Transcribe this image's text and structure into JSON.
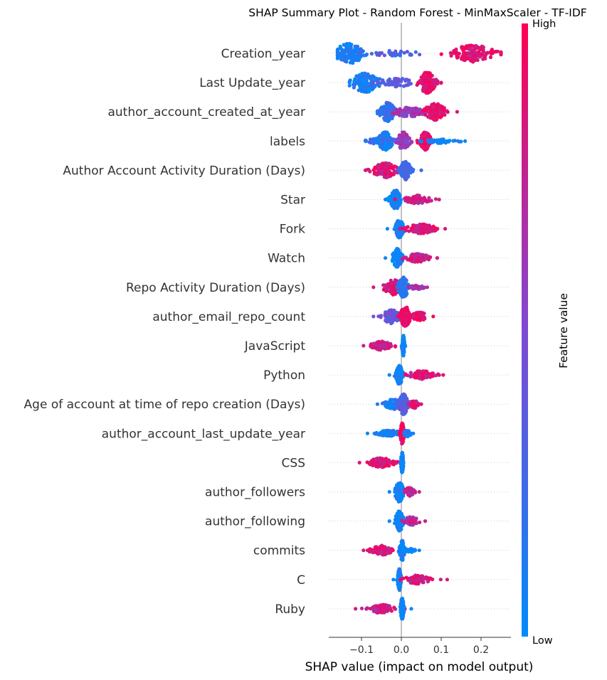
{
  "chart_data": {
    "type": "scatter",
    "subtype": "shap-beeswarm",
    "title": "SHAP Summary Plot - Random Forest - MinMaxScaler - TF-IDF",
    "xlabel": "SHAP value (impact on model output)",
    "xlim": [
      -0.18,
      0.27
    ],
    "xticks": [
      -0.1,
      0.0,
      0.1,
      0.2
    ],
    "xtick_labels": [
      "−0.1",
      "0.0",
      "0.1",
      "0.2"
    ],
    "colorbar": {
      "label": "Feature value",
      "high_label": "High",
      "low_label": "Low",
      "low_color": "#008bfb",
      "mid_color": "#7f49d3",
      "high_color": "#ff0052"
    },
    "features": [
      {
        "name": "Creation_year",
        "min": -0.16,
        "max": 0.25,
        "clusters": [
          {
            "c": -0.13,
            "w": 0.035,
            "n": 140,
            "h": 0.95,
            "v": 0.1
          },
          {
            "c": -0.02,
            "w": 0.07,
            "n": 40,
            "h": 0.25,
            "v": 0.3
          },
          {
            "c": 0.18,
            "w": 0.05,
            "n": 130,
            "h": 0.8,
            "v": 0.88
          }
        ]
      },
      {
        "name": "Last Update_year",
        "min": -0.13,
        "max": 0.1,
        "clusters": [
          {
            "c": -0.09,
            "w": 0.035,
            "n": 130,
            "h": 0.9,
            "v": 0.1
          },
          {
            "c": -0.01,
            "w": 0.04,
            "n": 60,
            "h": 0.4,
            "v": 0.35
          },
          {
            "c": 0.065,
            "w": 0.02,
            "n": 140,
            "h": 1.0,
            "v": 0.9
          }
        ]
      },
      {
        "name": "author_account_created_at_year",
        "min": -0.06,
        "max": 0.14,
        "clusters": [
          {
            "c": -0.035,
            "w": 0.018,
            "n": 130,
            "h": 0.9,
            "v": 0.2
          },
          {
            "c": 0.02,
            "w": 0.035,
            "n": 90,
            "h": 0.5,
            "v": 0.6
          },
          {
            "c": 0.085,
            "w": 0.025,
            "n": 110,
            "h": 0.8,
            "v": 0.9
          }
        ]
      },
      {
        "name": "labels",
        "min": -0.09,
        "max": 0.16,
        "clusters": [
          {
            "c": -0.04,
            "w": 0.018,
            "n": 120,
            "h": 0.85,
            "v": 0.1
          },
          {
            "c": -0.05,
            "w": 0.04,
            "n": 40,
            "h": 0.3,
            "v": 0.2
          },
          {
            "c": 0.005,
            "w": 0.014,
            "n": 100,
            "h": 0.85,
            "v": 0.6
          },
          {
            "c": 0.06,
            "w": 0.014,
            "n": 110,
            "h": 0.85,
            "v": 0.92
          },
          {
            "c": 0.1,
            "w": 0.04,
            "n": 40,
            "h": 0.2,
            "v": 0.05
          }
        ]
      },
      {
        "name": "Author Account Activity Duration (Days)",
        "min": -0.09,
        "max": 0.05,
        "clusters": [
          {
            "c": -0.04,
            "w": 0.03,
            "n": 130,
            "h": 0.7,
            "v": 0.85
          },
          {
            "c": 0.01,
            "w": 0.013,
            "n": 110,
            "h": 0.9,
            "v": 0.25
          }
        ]
      },
      {
        "name": "Star",
        "min": -0.04,
        "max": 0.095,
        "clusters": [
          {
            "c": -0.015,
            "w": 0.012,
            "n": 130,
            "h": 0.95,
            "v": 0.05
          },
          {
            "c": 0.04,
            "w": 0.03,
            "n": 90,
            "h": 0.4,
            "v": 0.8
          }
        ]
      },
      {
        "name": "Fork",
        "min": -0.035,
        "max": 0.11,
        "clusters": [
          {
            "c": -0.005,
            "w": 0.01,
            "n": 120,
            "h": 0.85,
            "v": 0.05
          },
          {
            "c": 0.05,
            "w": 0.035,
            "n": 110,
            "h": 0.45,
            "v": 0.85
          }
        ]
      },
      {
        "name": "Watch",
        "min": -0.04,
        "max": 0.09,
        "clusters": [
          {
            "c": -0.01,
            "w": 0.011,
            "n": 120,
            "h": 0.9,
            "v": 0.05
          },
          {
            "c": 0.04,
            "w": 0.03,
            "n": 90,
            "h": 0.4,
            "v": 0.8
          }
        ]
      },
      {
        "name": "Repo Activity Duration (Days)",
        "min": -0.07,
        "max": 0.065,
        "clusters": [
          {
            "c": -0.02,
            "w": 0.022,
            "n": 110,
            "h": 0.7,
            "v": 0.85
          },
          {
            "c": 0.005,
            "w": 0.013,
            "n": 110,
            "h": 0.95,
            "v": 0.15
          },
          {
            "c": 0.04,
            "w": 0.02,
            "n": 30,
            "h": 0.2,
            "v": 0.7
          }
        ]
      },
      {
        "name": "author_email_repo_count",
        "min": -0.07,
        "max": 0.08,
        "clusters": [
          {
            "c": -0.025,
            "w": 0.02,
            "n": 110,
            "h": 0.65,
            "v": 0.4
          },
          {
            "c": 0.01,
            "w": 0.012,
            "n": 130,
            "h": 0.95,
            "v": 0.95
          },
          {
            "c": 0.045,
            "w": 0.02,
            "n": 60,
            "h": 0.4,
            "v": 0.9
          }
        ]
      },
      {
        "name": "JavaScript",
        "min": -0.095,
        "max": 0.01,
        "clusters": [
          {
            "c": -0.05,
            "w": 0.028,
            "n": 110,
            "h": 0.4,
            "v": 0.8
          },
          {
            "c": 0.005,
            "w": 0.003,
            "n": 100,
            "h": 0.95,
            "v": 0.02
          }
        ]
      },
      {
        "name": "Python",
        "min": -0.03,
        "max": 0.105,
        "clusters": [
          {
            "c": -0.005,
            "w": 0.008,
            "n": 110,
            "h": 0.9,
            "v": 0.05
          },
          {
            "c": 0.05,
            "w": 0.03,
            "n": 100,
            "h": 0.4,
            "v": 0.85
          }
        ]
      },
      {
        "name": "Age of account at time of repo creation (Days)",
        "min": -0.06,
        "max": 0.05,
        "clusters": [
          {
            "c": -0.02,
            "w": 0.02,
            "n": 80,
            "h": 0.5,
            "v": 0.1
          },
          {
            "c": 0.005,
            "w": 0.012,
            "n": 120,
            "h": 0.95,
            "v": 0.35
          },
          {
            "c": 0.03,
            "w": 0.012,
            "n": 40,
            "h": 0.4,
            "v": 0.85
          }
        ]
      },
      {
        "name": "author_account_last_update_year",
        "min": -0.085,
        "max": 0.03,
        "clusters": [
          {
            "c": -0.03,
            "w": 0.03,
            "n": 80,
            "h": 0.3,
            "v": 0.05
          },
          {
            "c": 0.002,
            "w": 0.005,
            "n": 140,
            "h": 1.0,
            "v": 0.95
          },
          {
            "c": 0.015,
            "w": 0.01,
            "n": 30,
            "h": 0.3,
            "v": 0.1
          }
        ]
      },
      {
        "name": "CSS",
        "min": -0.105,
        "max": 0.005,
        "clusters": [
          {
            "c": -0.05,
            "w": 0.03,
            "n": 110,
            "h": 0.45,
            "v": 0.85
          },
          {
            "c": 0.002,
            "w": 0.003,
            "n": 110,
            "h": 0.95,
            "v": 0.02
          }
        ]
      },
      {
        "name": "author_followers",
        "min": -0.03,
        "max": 0.045,
        "clusters": [
          {
            "c": -0.005,
            "w": 0.01,
            "n": 130,
            "h": 0.95,
            "v": 0.05
          },
          {
            "c": 0.02,
            "w": 0.013,
            "n": 50,
            "h": 0.4,
            "v": 0.75
          }
        ]
      },
      {
        "name": "author_following",
        "min": -0.03,
        "max": 0.06,
        "clusters": [
          {
            "c": -0.005,
            "w": 0.01,
            "n": 130,
            "h": 0.95,
            "v": 0.05
          },
          {
            "c": 0.025,
            "w": 0.018,
            "n": 60,
            "h": 0.4,
            "v": 0.75
          }
        ]
      },
      {
        "name": "commits",
        "min": -0.095,
        "max": 0.045,
        "clusters": [
          {
            "c": -0.05,
            "w": 0.025,
            "n": 100,
            "h": 0.45,
            "v": 0.85
          },
          {
            "c": 0.002,
            "w": 0.006,
            "n": 120,
            "h": 0.95,
            "v": 0.05
          },
          {
            "c": 0.025,
            "w": 0.012,
            "n": 20,
            "h": 0.2,
            "v": 0.05
          }
        ]
      },
      {
        "name": "C",
        "min": -0.02,
        "max": 0.115,
        "clusters": [
          {
            "c": -0.005,
            "w": 0.004,
            "n": 130,
            "h": 1.0,
            "v": 0.02
          },
          {
            "c": 0.04,
            "w": 0.03,
            "n": 100,
            "h": 0.4,
            "v": 0.85
          }
        ]
      },
      {
        "name": "Ruby",
        "min": -0.115,
        "max": 0.025,
        "clusters": [
          {
            "c": -0.05,
            "w": 0.03,
            "n": 100,
            "h": 0.4,
            "v": 0.8
          },
          {
            "c": 0.002,
            "w": 0.004,
            "n": 130,
            "h": 1.0,
            "v": 0.02
          }
        ]
      }
    ]
  }
}
